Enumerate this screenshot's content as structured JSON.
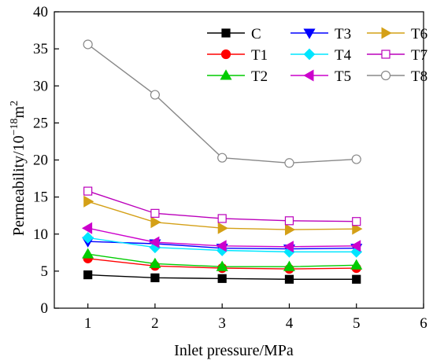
{
  "chart_data": {
    "type": "line",
    "xlabel": "Inlet pressure/MPa",
    "ylabel_main": "Permeability/10",
    "ylabel_exp": "−18",
    "ylabel_unit": "m",
    "ylabel_unit_exp": "2",
    "xlim": [
      0.5,
      6
    ],
    "ylim": [
      0,
      40
    ],
    "xticks": [
      "1",
      "2",
      "3",
      "4",
      "5",
      "6"
    ],
    "yticks": [
      "0",
      "5",
      "10",
      "15",
      "20",
      "25",
      "30",
      "35",
      "40"
    ],
    "grid": false,
    "legend_position": "top-right",
    "x": [
      1,
      2,
      3,
      4,
      5
    ],
    "series": [
      {
        "name": "C",
        "color": "#000000",
        "marker": "square-filled",
        "values": [
          4.5,
          4.1,
          4.0,
          3.9,
          3.9
        ]
      },
      {
        "name": "T1",
        "color": "#ff0000",
        "marker": "circle-filled",
        "values": [
          6.7,
          5.7,
          5.4,
          5.3,
          5.4
        ]
      },
      {
        "name": "T2",
        "color": "#00cc00",
        "marker": "triangle-up-filled",
        "values": [
          7.3,
          6.0,
          5.6,
          5.6,
          5.8
        ]
      },
      {
        "name": "T3",
        "color": "#0000ff",
        "marker": "triangle-down-filled",
        "values": [
          9.0,
          8.7,
          8.1,
          8.0,
          8.1
        ]
      },
      {
        "name": "T4",
        "color": "#00e5ff",
        "marker": "diamond-filled",
        "values": [
          9.5,
          8.2,
          7.8,
          7.6,
          7.6
        ]
      },
      {
        "name": "T5",
        "color": "#cc00cc",
        "marker": "triangle-left-filled",
        "values": [
          10.8,
          8.9,
          8.4,
          8.3,
          8.4
        ]
      },
      {
        "name": "T6",
        "color": "#d4a017",
        "marker": "triangle-right-filled",
        "values": [
          14.4,
          11.6,
          10.8,
          10.6,
          10.7
        ]
      },
      {
        "name": "T7",
        "color": "#bb00bb",
        "marker": "square-open",
        "values": [
          15.8,
          12.8,
          12.1,
          11.8,
          11.7
        ]
      },
      {
        "name": "T8",
        "color": "#888888",
        "marker": "circle-open",
        "values": [
          35.6,
          28.8,
          20.3,
          19.6,
          20.1
        ]
      }
    ]
  }
}
